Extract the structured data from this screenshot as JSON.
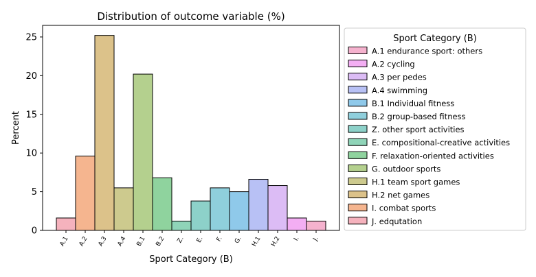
{
  "chart_data": {
    "type": "bar",
    "title": "Distribution of outcome variable (%)",
    "xlabel": "Sport Category (B)",
    "ylabel": "Percent",
    "ylim": [
      0,
      26.5
    ],
    "yticks": [
      0,
      5,
      10,
      15,
      20,
      25
    ],
    "grid": false,
    "categories": [
      "A.1",
      "A.2",
      "A.3",
      "A.4",
      "B.1",
      "B.2",
      "Z.",
      "E.",
      "F.",
      "G.",
      "H.1",
      "H.2",
      "I.",
      "J."
    ],
    "values": [
      1.6,
      9.6,
      25.2,
      5.5,
      20.2,
      6.8,
      1.2,
      3.8,
      5.5,
      5.0,
      6.6,
      5.8,
      1.6,
      1.2
    ],
    "bar_colors": [
      "#f5b2bd",
      "#f5b58f",
      "#dcc28a",
      "#cdca8e",
      "#b4d08e",
      "#8fd39e",
      "#8fd4b8",
      "#8dd1c9",
      "#8fcfdc",
      "#8fc9ea",
      "#b8c1f5",
      "#dcbcf5",
      "#f3aef3",
      "#f5b2ce"
    ],
    "legend": {
      "title": "Sport Category (B)",
      "placement": "outside-right",
      "entries": [
        {
          "label": "A.1 endurance sport: others",
          "color": "#f5b2ce"
        },
        {
          "label": "A.2 cycling",
          "color": "#f3aef3"
        },
        {
          "label": "A.3 per pedes",
          "color": "#dcbcf5"
        },
        {
          "label": "A.4 swimming",
          "color": "#b8c1f5"
        },
        {
          "label": "B.1 Individual fitness",
          "color": "#8fc9ea"
        },
        {
          "label": "B.2 group-based fitness",
          "color": "#8fcfdc"
        },
        {
          "label": "Z. other sport activities",
          "color": "#8dd1c9"
        },
        {
          "label": "E. compositional-creative activities",
          "color": "#8fd4b8"
        },
        {
          "label": "F. relaxation-oriented activities",
          "color": "#8fd39e"
        },
        {
          "label": "G. outdoor sports",
          "color": "#b4d08e"
        },
        {
          "label": "H.1 team sport games",
          "color": "#cdca8e"
        },
        {
          "label": "H.2 net games",
          "color": "#dcc28a"
        },
        {
          "label": "I. combat sports",
          "color": "#f5b58f"
        },
        {
          "label": "J. edqutation",
          "color": "#f5b2bd"
        }
      ]
    }
  }
}
